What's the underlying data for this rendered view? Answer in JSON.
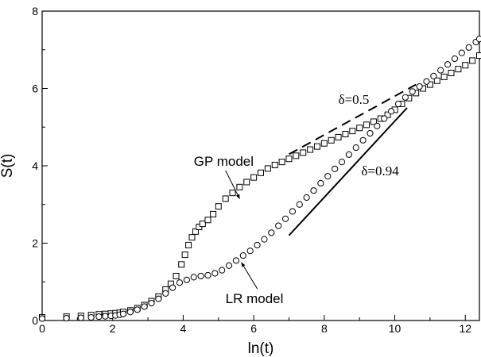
{
  "chart_data": {
    "type": "scatter",
    "xlabel": "ln(t)",
    "ylabel": "S(t)",
    "xlim": [
      0,
      12.4
    ],
    "ylim": [
      0,
      8
    ],
    "x_ticks": [
      "0",
      "2",
      "4",
      "6",
      "8",
      "10",
      "12"
    ],
    "y_ticks": [
      "0",
      "2",
      "4",
      "6",
      "8"
    ],
    "x_tick_values": [
      0,
      2,
      4,
      6,
      8,
      10,
      12
    ],
    "y_tick_values": [
      0,
      2,
      4,
      6,
      8
    ],
    "grid": false,
    "series": [
      {
        "marker": "square",
        "x": [
          0.0,
          0.69,
          1.1,
          1.39,
          1.61,
          1.79,
          1.95,
          2.08,
          2.2,
          2.3,
          2.5,
          2.7,
          2.9,
          3.1,
          3.3,
          3.5,
          3.65,
          3.8,
          3.95,
          4.05,
          4.15,
          4.25,
          4.35,
          4.45,
          4.55,
          4.7,
          4.85,
          5.0,
          5.2,
          5.4,
          5.6,
          5.8,
          6.0,
          6.2,
          6.4,
          6.6,
          6.8,
          7.0,
          7.2,
          7.4,
          7.6,
          7.8,
          8.0,
          8.2,
          8.4,
          8.6,
          8.8,
          9.0,
          9.2,
          9.4,
          9.6,
          9.8,
          10.0,
          10.2,
          10.4,
          10.6,
          10.8,
          11.0,
          11.2,
          11.4,
          11.6,
          11.8,
          12.0,
          12.2,
          12.4
        ],
        "y": [
          0.08,
          0.1,
          0.12,
          0.14,
          0.16,
          0.17,
          0.18,
          0.19,
          0.2,
          0.22,
          0.26,
          0.32,
          0.4,
          0.5,
          0.62,
          0.8,
          0.95,
          1.15,
          1.45,
          1.7,
          1.95,
          2.15,
          2.3,
          2.42,
          2.5,
          2.6,
          2.75,
          2.95,
          3.15,
          3.3,
          3.45,
          3.58,
          3.7,
          3.82,
          3.93,
          4.02,
          4.1,
          4.18,
          4.26,
          4.34,
          4.42,
          4.5,
          4.58,
          4.66,
          4.74,
          4.82,
          4.9,
          4.98,
          5.06,
          5.14,
          5.22,
          5.32,
          5.45,
          5.6,
          5.75,
          5.88,
          6.0,
          6.1,
          6.2,
          6.3,
          6.4,
          6.5,
          6.6,
          6.72,
          6.85
        ]
      },
      {
        "marker": "circle",
        "x": [
          0.0,
          0.69,
          1.1,
          1.39,
          1.61,
          1.79,
          1.95,
          2.08,
          2.2,
          2.3,
          2.5,
          2.7,
          2.9,
          3.1,
          3.3,
          3.5,
          3.7,
          3.9,
          4.1,
          4.3,
          4.5,
          4.7,
          4.9,
          5.1,
          5.3,
          5.5,
          5.7,
          5.9,
          6.1,
          6.3,
          6.5,
          6.7,
          6.9,
          7.1,
          7.3,
          7.5,
          7.7,
          7.9,
          8.1,
          8.3,
          8.5,
          8.7,
          8.9,
          9.1,
          9.3,
          9.5,
          9.7,
          9.9,
          10.1,
          10.3,
          10.5,
          10.7,
          10.9,
          11.1,
          11.3,
          11.5,
          11.7,
          11.9,
          12.1,
          12.3,
          12.4
        ],
        "y": [
          0.05,
          0.06,
          0.07,
          0.08,
          0.1,
          0.11,
          0.12,
          0.13,
          0.15,
          0.17,
          0.22,
          0.28,
          0.36,
          0.45,
          0.56,
          0.7,
          0.85,
          0.98,
          1.05,
          1.12,
          1.15,
          1.17,
          1.22,
          1.3,
          1.42,
          1.55,
          1.68,
          1.8,
          1.95,
          2.1,
          2.27,
          2.45,
          2.63,
          2.82,
          3.0,
          3.18,
          3.36,
          3.55,
          3.73,
          3.92,
          4.1,
          4.29,
          4.47,
          4.66,
          4.84,
          5.03,
          5.22,
          5.41,
          5.6,
          5.77,
          5.92,
          6.05,
          6.18,
          6.32,
          6.47,
          6.62,
          6.77,
          6.92,
          7.06,
          7.2,
          7.28
        ]
      }
    ],
    "reference_lines": [
      {
        "style": "dashed",
        "x": [
          7.0,
          10.6
        ],
        "y": [
          4.3,
          6.1
        ]
      },
      {
        "style": "solid",
        "x": [
          7.0,
          10.35
        ],
        "y": [
          2.2,
          5.5
        ]
      }
    ],
    "annotations": [
      {
        "text": "GP model",
        "x": 4.3,
        "y": 4.0,
        "arrow_to": [
          5.6,
          3.15
        ]
      },
      {
        "text": "LR model",
        "x": 5.2,
        "y": 0.45,
        "arrow_to": [
          5.65,
          1.5
        ]
      },
      {
        "text": "δ=0.5",
        "x": 8.4,
        "y": 5.6
      },
      {
        "text": "δ=0.94",
        "x": 9.05,
        "y": 3.75
      }
    ]
  },
  "colors": {
    "stroke": "#000000",
    "marker_fill": "#ffffff",
    "background": "#ffffff"
  }
}
